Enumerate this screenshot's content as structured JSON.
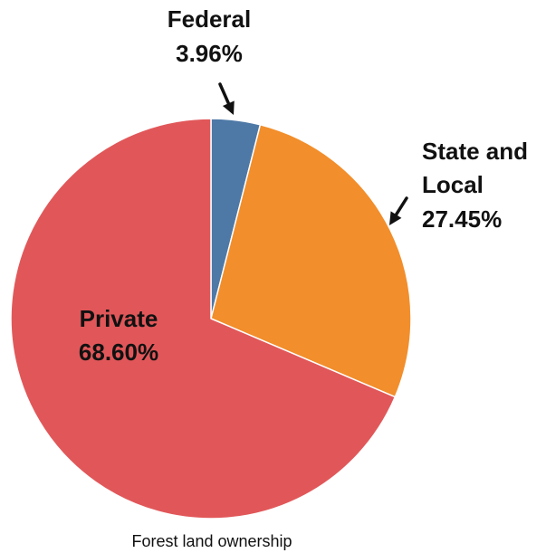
{
  "chart_data": {
    "type": "pie",
    "title": "",
    "caption": "Forest land ownership",
    "slices": [
      {
        "name": "Federal",
        "value": 3.96,
        "display": "3.96%",
        "color": "#4e79a7"
      },
      {
        "name": "State and Local",
        "name_lines": [
          "State and",
          "Local"
        ],
        "value": 27.45,
        "display": "27.45%",
        "color": "#f28e2b"
      },
      {
        "name": "Private",
        "value": 68.6,
        "display": "68.60%",
        "color": "#e15759"
      }
    ],
    "start_angle_deg": 0,
    "direction": "clockwise",
    "legend": "none"
  }
}
